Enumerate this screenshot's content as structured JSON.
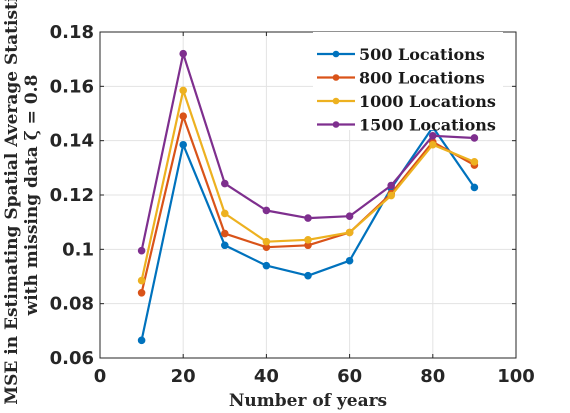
{
  "chart_data": {
    "type": "line",
    "title": "",
    "xlabel": "Number of years",
    "ylabel_line1": "MSE in Estimating Spatial Average Statistic",
    "ylabel_line2": "with missing data ζ = 0.8",
    "xlim": [
      0,
      100
    ],
    "ylim": [
      0.06,
      0.18
    ],
    "xticks": [
      0,
      20,
      40,
      60,
      80,
      100
    ],
    "xtick_labels": [
      "0",
      "20",
      "40",
      "60",
      "80",
      "100"
    ],
    "yticks": [
      0.06,
      0.08,
      0.1,
      0.12,
      0.14,
      0.16,
      0.18
    ],
    "ytick_labels": [
      "0.06",
      "0.08",
      "0.1",
      "0.12",
      "0.14",
      "0.16",
      "0.18"
    ],
    "grid": true,
    "legend_position": "top-right",
    "x": [
      10,
      20,
      30,
      40,
      50,
      60,
      70,
      80,
      90
    ],
    "series": [
      {
        "name": "500 Locations",
        "color": "#0072BD",
        "values": [
          0.0665,
          0.1385,
          0.1015,
          0.094,
          0.0903,
          0.0958,
          0.1225,
          0.145,
          0.1228
        ]
      },
      {
        "name": "800 Locations",
        "color": "#D95319",
        "values": [
          0.084,
          0.149,
          0.1058,
          0.1008,
          0.1015,
          0.1062,
          0.1205,
          0.1395,
          0.131
        ]
      },
      {
        "name": "1000 Locations",
        "color": "#EDB120",
        "values": [
          0.0885,
          0.1585,
          0.1132,
          0.1028,
          0.1035,
          0.1062,
          0.1198,
          0.1385,
          0.1322
        ]
      },
      {
        "name": "1500 Locations",
        "color": "#7E2F8E",
        "values": [
          0.0995,
          0.172,
          0.1242,
          0.1143,
          0.1115,
          0.1122,
          0.1235,
          0.1418,
          0.141
        ]
      }
    ]
  }
}
